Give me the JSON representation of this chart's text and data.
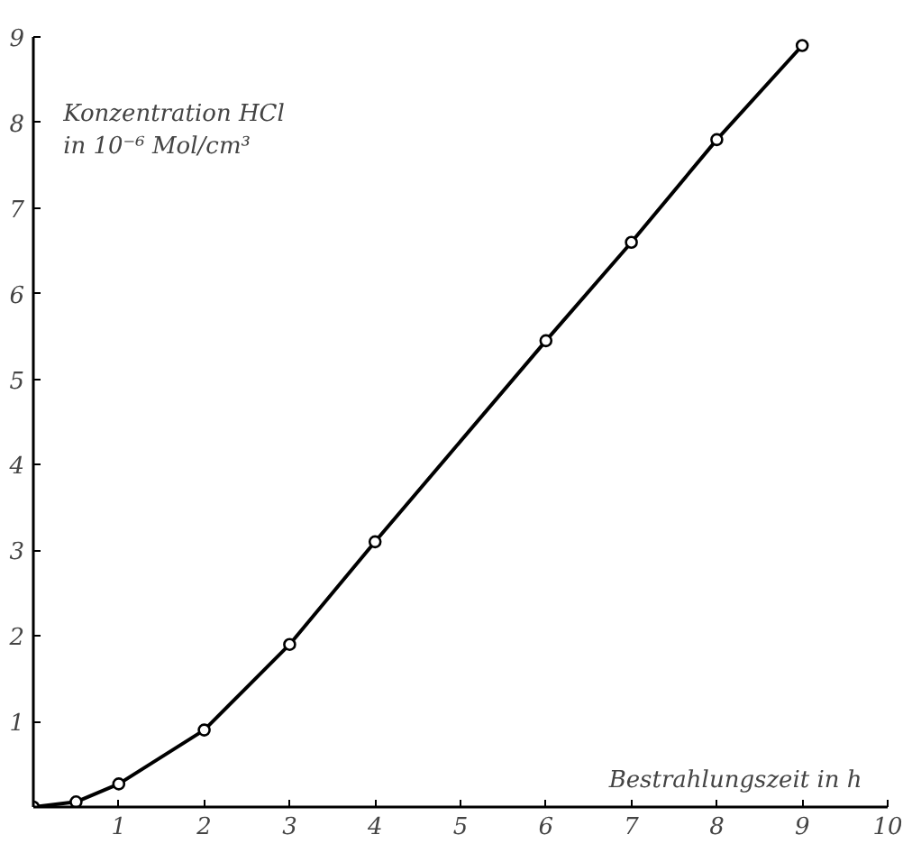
{
  "chart_data": {
    "type": "line",
    "xlabel": "Bestrahlungszeit in h",
    "ylabel": "Konzentration HCl\nin 10⁻⁶ Mol/cm³",
    "x": [
      0,
      0.5,
      1,
      2,
      3,
      4,
      6,
      7,
      8,
      9
    ],
    "series": [
      {
        "color": "#000000",
        "values": [
          0,
          0.06,
          0.27,
          0.9,
          1.9,
          3.1,
          5.45,
          6.6,
          7.8,
          8.9
        ]
      }
    ],
    "xlim": [
      0,
      10
    ],
    "ylim": [
      0,
      9
    ],
    "xticks": [
      {
        "value": 0,
        "label": null
      },
      1,
      2,
      3,
      4,
      5,
      6,
      7,
      8,
      9,
      10
    ],
    "yticks": [
      {
        "value": 0,
        "label": null
      },
      1,
      2,
      3,
      4,
      5,
      6,
      7,
      8,
      9
    ],
    "marker": "circle",
    "grid": false
  }
}
